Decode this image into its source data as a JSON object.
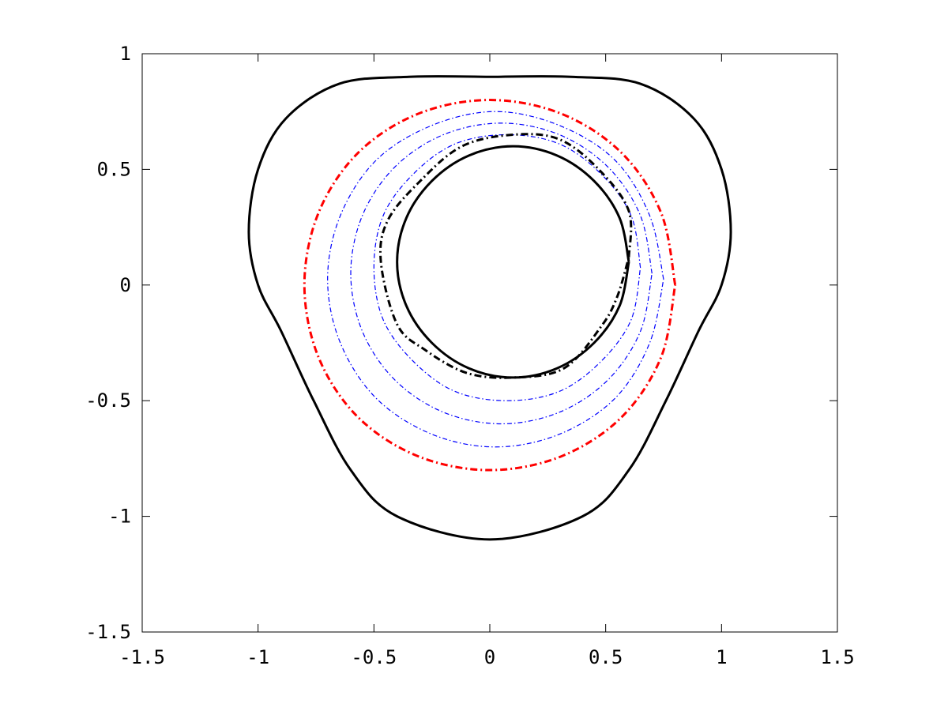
{
  "chart_data": {
    "type": "line",
    "xlim": [
      -1.5,
      1.5
    ],
    "ylim": [
      -1.5,
      1
    ],
    "xticks": [
      -1.5,
      -1,
      -0.5,
      0,
      0.5,
      1,
      1.5
    ],
    "yticks": [
      -1.5,
      -1,
      -0.5,
      0,
      0.5,
      1
    ],
    "series": [
      {
        "color": "#000000",
        "style": "solid",
        "width": 3,
        "x": [
          0,
          0.35,
          0.65,
          0.88,
          1.0,
          1.04,
          1.0,
          0.9,
          0.76,
          0.6,
          0.4,
          0,
          -0.4,
          -0.6,
          -0.76,
          -0.9,
          -1.0,
          -1.04,
          -1.0,
          -0.88,
          -0.65,
          -0.35,
          0
        ],
        "values": [
          0.9,
          0.9,
          0.87,
          0.72,
          0.5,
          0.23,
          0,
          -0.2,
          -0.5,
          -0.8,
          -1.0,
          -1.1,
          -1.0,
          -0.8,
          -0.5,
          -0.2,
          0,
          0.23,
          0.5,
          0.72,
          0.87,
          0.9,
          0.9
        ]
      },
      {
        "color": "#0000ff",
        "style": "dashdot",
        "width": 1.2,
        "x": [
          0.65,
          0.61,
          0.48,
          0.3,
          0.075,
          -0.15,
          -0.33,
          -0.46,
          -0.5,
          -0.46,
          -0.33,
          -0.15,
          0.075,
          0.3,
          0.48,
          0.61,
          0.65
        ],
        "values": [
          0.075,
          0.3,
          0.48,
          0.61,
          0.65,
          0.61,
          0.48,
          0.3,
          0.075,
          -0.15,
          -0.33,
          -0.46,
          -0.5,
          -0.46,
          -0.33,
          -0.15,
          0.075
        ]
      },
      {
        "color": "#0000ff",
        "style": "dashdot",
        "width": 1.2,
        "x": [
          0.7,
          0.65,
          0.51,
          0.3,
          0.05,
          -0.2,
          -0.41,
          -0.55,
          -0.6,
          -0.55,
          -0.41,
          -0.2,
          0.05,
          0.3,
          0.51,
          0.65,
          0.7
        ],
        "values": [
          0.05,
          0.3,
          0.51,
          0.65,
          0.7,
          0.65,
          0.51,
          0.3,
          0.05,
          -0.2,
          -0.41,
          -0.55,
          -0.6,
          -0.55,
          -0.41,
          -0.2,
          0.05
        ]
      },
      {
        "color": "#0000ff",
        "style": "dashdot",
        "width": 1.2,
        "x": [
          0.75,
          0.69,
          0.54,
          0.3,
          0.025,
          -0.25,
          -0.49,
          -0.645,
          -0.7,
          -0.645,
          -0.49,
          -0.25,
          0.025,
          0.3,
          0.54,
          0.69,
          0.75
        ],
        "values": [
          0.025,
          0.3,
          0.54,
          0.69,
          0.75,
          0.69,
          0.54,
          0.3,
          0.025,
          -0.25,
          -0.49,
          -0.645,
          -0.7,
          -0.645,
          -0.49,
          -0.25,
          0.025
        ]
      },
      {
        "color": "#ff0000",
        "style": "dashdot",
        "width": 3,
        "x": [
          0.8,
          0.74,
          0.57,
          0.31,
          0,
          -0.31,
          -0.57,
          -0.74,
          -0.8,
          -0.74,
          -0.57,
          -0.31,
          0,
          0.31,
          0.57,
          0.74,
          0.8
        ],
        "values": [
          0,
          0.31,
          0.57,
          0.74,
          0.8,
          0.74,
          0.57,
          0.31,
          0,
          -0.31,
          -0.57,
          -0.74,
          -0.8,
          -0.74,
          -0.57,
          -0.31,
          0
        ]
      },
      {
        "color": "#000000",
        "style": "dashdot",
        "width": 3,
        "x": [
          0.6,
          0.6,
          0.47,
          0.3,
          0.1,
          -0.12,
          -0.3,
          -0.44,
          -0.47,
          -0.4,
          -0.28,
          -0.1,
          0.1,
          0.32,
          0.48,
          0.55,
          0.6
        ],
        "values": [
          0.12,
          0.32,
          0.5,
          0.63,
          0.65,
          0.6,
          0.45,
          0.28,
          0.1,
          -0.17,
          -0.28,
          -0.38,
          -0.4,
          -0.36,
          -0.18,
          -0.05,
          0.12
        ]
      },
      {
        "color": "#000000",
        "style": "solid",
        "width": 3,
        "x": [
          0.6,
          0.56,
          0.45,
          0.29,
          0.1,
          -0.09,
          -0.25,
          -0.36,
          -0.4,
          -0.36,
          -0.25,
          -0.09,
          0.1,
          0.29,
          0.45,
          0.56,
          0.6
        ],
        "values": [
          0.1,
          0.29,
          0.45,
          0.56,
          0.6,
          0.56,
          0.45,
          0.29,
          0.1,
          -0.09,
          -0.25,
          -0.36,
          -0.4,
          -0.36,
          -0.25,
          -0.09,
          0.1
        ]
      }
    ]
  }
}
